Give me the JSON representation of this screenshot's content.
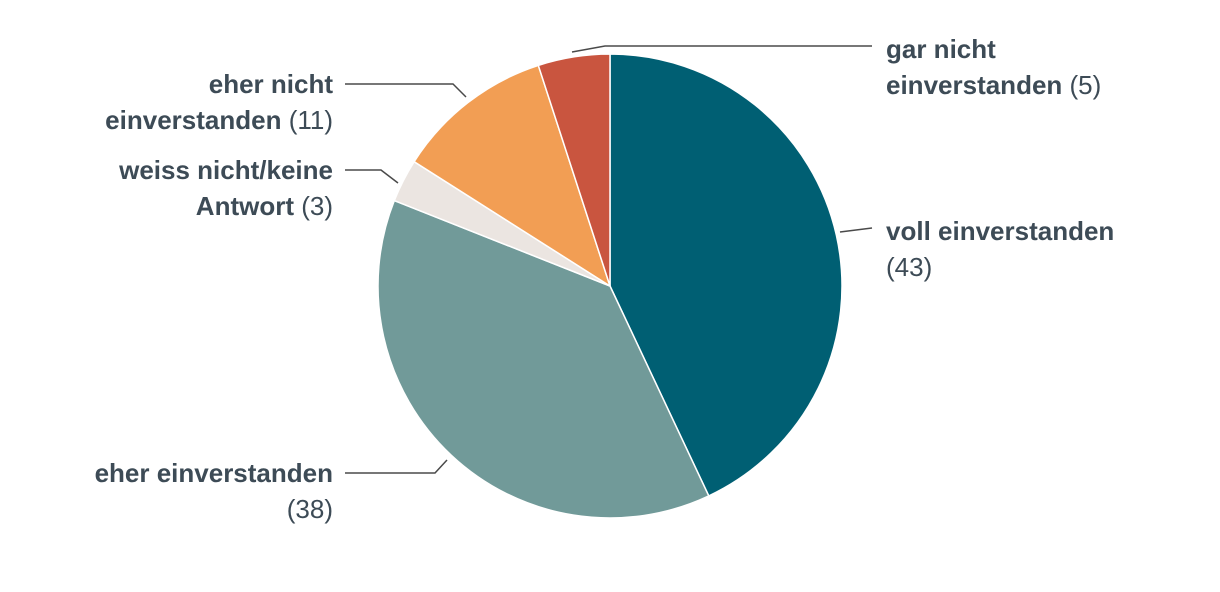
{
  "chart_data": {
    "type": "pie",
    "title": "",
    "slices": [
      {
        "label_lines": [
          "voll einverstanden"
        ],
        "value_text": "(43)",
        "value": 43,
        "color": "#005f73"
      },
      {
        "label_lines": [
          "eher einverstanden"
        ],
        "value_text": "(38)",
        "value": 38,
        "color": "#719a99"
      },
      {
        "label_lines": [
          "weiss nicht/keine",
          "Antwort"
        ],
        "value_text": "(3)",
        "value": 3,
        "color": "#ebe5e1"
      },
      {
        "label_lines": [
          "eher nicht",
          "einverstanden"
        ],
        "value_text": "(11)",
        "value": 11,
        "color": "#f29e54"
      },
      {
        "label_lines": [
          "gar nicht",
          "einverstanden"
        ],
        "value_text": "(5)",
        "value": 5,
        "color": "#c9553f"
      }
    ]
  }
}
